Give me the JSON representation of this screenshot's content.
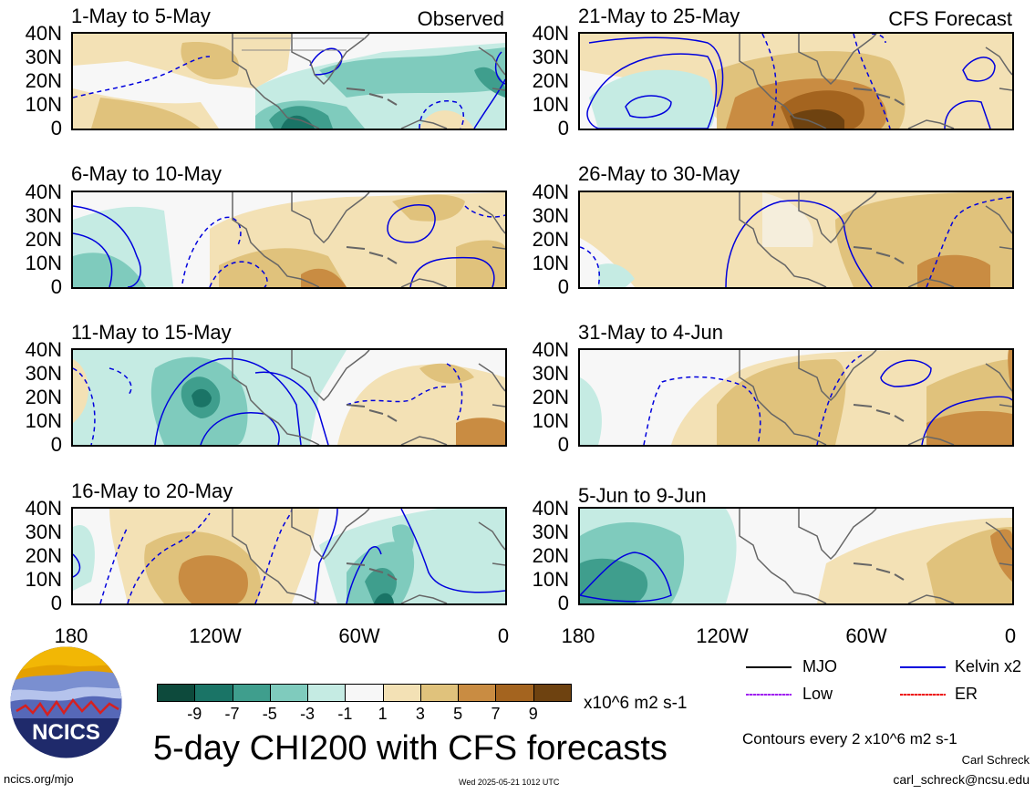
{
  "panels_left": [
    {
      "title": "1-May to 5-May",
      "note": "Observed"
    },
    {
      "title": "6-May to 10-May",
      "note": ""
    },
    {
      "title": "11-May to 15-May",
      "note": ""
    },
    {
      "title": "16-May to 20-May",
      "note": ""
    }
  ],
  "panels_right": [
    {
      "title": "21-May to 25-May",
      "note": "CFS Forecast"
    },
    {
      "title": "26-May to 30-May",
      "note": ""
    },
    {
      "title": "31-May to 4-Jun",
      "note": ""
    },
    {
      "title": "5-Jun to 9-Jun",
      "note": ""
    }
  ],
  "lat_labels": [
    "40N",
    "30N",
    "20N",
    "10N",
    "0"
  ],
  "lon_labels": [
    "180",
    "120W",
    "60W",
    "0"
  ],
  "colorbar": {
    "ticks": [
      "-9",
      "-7",
      "-5",
      "-3",
      "-1",
      "1",
      "3",
      "5",
      "7",
      "9"
    ],
    "colors": [
      "#0d4a3c",
      "#1a7466",
      "#3f9e8d",
      "#7fcbbd",
      "#c5ebe3",
      "#f7f7f7",
      "#f3e1b5",
      "#e0c27c",
      "#c98c42",
      "#a4641f",
      "#6e4210"
    ],
    "units": "x10^6 m2 s-1"
  },
  "legend": {
    "mjo": "MJO",
    "kelvin": "Kelvin x2",
    "low": "Low",
    "er": "ER",
    "colors": {
      "mjo": "#000000",
      "kelvin": "#0000dd",
      "low": "#a020f0",
      "er": "#ee1111"
    }
  },
  "logo": {
    "text": "NCICS"
  },
  "main_title": "5-day CHI200 with CFS forecasts",
  "contour_note": "Contours every 2 x10^6 m2 s-1",
  "author": "Carl Schreck",
  "email": "carl_schreck@ncsu.edu",
  "site": "ncics.org/mjo",
  "timestamp": "Wed 2025-05-21 1012 UTC"
}
